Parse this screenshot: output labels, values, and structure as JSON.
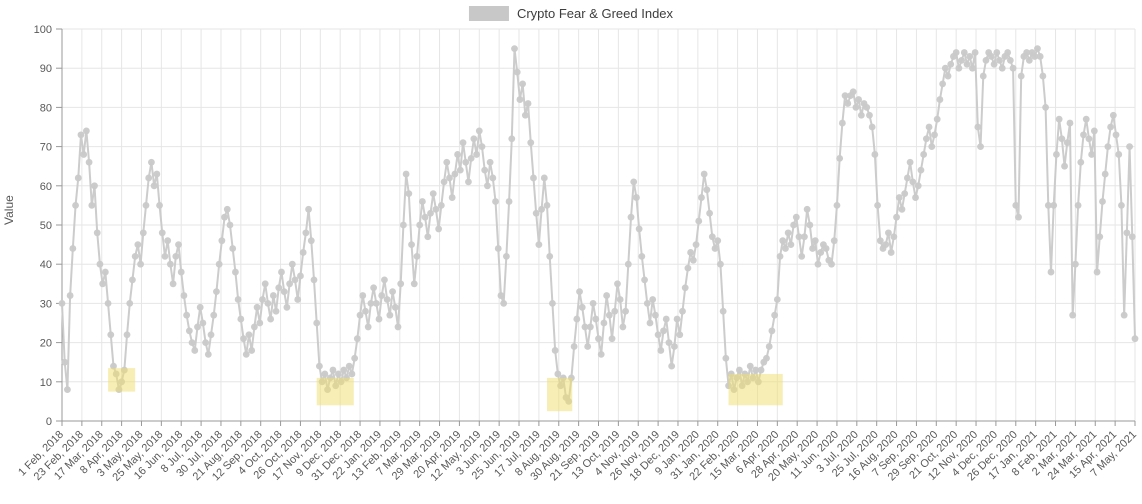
{
  "legend": {
    "label": "Crypto Fear & Greed Index",
    "swatch_color": "#c8c8c8",
    "text_color": "#3d3d3d"
  },
  "chart_data": {
    "type": "line",
    "title": "Crypto Fear & Greed Index",
    "ylabel": "Value",
    "ylim": [
      0,
      100
    ],
    "y_ticks": [
      0,
      10,
      20,
      30,
      40,
      50,
      60,
      70,
      80,
      90,
      100
    ],
    "grid": true,
    "legend_position": "top-center",
    "axis_color": "#999999",
    "grid_color": "#e6e6e6",
    "tick_label_color": "#595959",
    "highlight_color": "#f0dd6e",
    "days_per_tick": 22,
    "x_tick_labels": [
      "1 Feb, 2018",
      "23 Feb, 2018",
      "17 Mar, 2018",
      "8 Apr, 2018",
      "3 May, 2018",
      "25 May, 2018",
      "16 Jun, 2018",
      "8 Jul, 2018",
      "30 Jul, 2018",
      "21 Aug, 2018",
      "12 Sep, 2018",
      "4 Oct, 2018",
      "26 Oct, 2018",
      "17 Nov, 2018",
      "9 Dec, 2018",
      "31 Dec, 2018",
      "22 Jan, 2019",
      "13 Feb, 2019",
      "7 Mar, 2019",
      "29 Mar, 2019",
      "20 Apr, 2019",
      "12 May, 2019",
      "3 Jun, 2019",
      "25 Jun, 2019",
      "17 Jul, 2019",
      "8 Aug, 2019",
      "30 Aug, 2019",
      "21 Sep, 2019",
      "13 Oct, 2019",
      "4 Nov, 2019",
      "26 Nov, 2019",
      "18 Dec, 2019",
      "9 Jan, 2020",
      "31 Jan, 2020",
      "22 Feb, 2020",
      "15 Mar, 2020",
      "6 Apr, 2020",
      "28 Apr, 2020",
      "20 May, 2020",
      "11 Jun, 2020",
      "3 Jul, 2020",
      "25 Jul, 2020",
      "16 Aug, 2020",
      "7 Sep, 2020",
      "29 Sep, 2020",
      "21 Oct, 2020",
      "12 Nov, 2020",
      "4 Dec, 2020",
      "26 Dec, 2020",
      "17 Jan, 2021",
      "8 Feb, 2021",
      "2 Mar, 2021",
      "24 Mar, 2021",
      "15 Apr, 2021",
      "7 May, 2021"
    ],
    "highlight_regions": [
      {
        "label": "extreme-fear-apr-2018",
        "day_start": 51,
        "day_end": 81,
        "value_min": 7.5,
        "value_max": 13.5
      },
      {
        "label": "extreme-fear-nov-dec-2018",
        "day_start": 282,
        "day_end": 323,
        "value_min": 4,
        "value_max": 11
      },
      {
        "label": "extreme-fear-aug-2019",
        "day_start": 537,
        "day_end": 565,
        "value_min": 2.5,
        "value_max": 11
      },
      {
        "label": "extreme-fear-mar-apr-2020",
        "day_start": 738,
        "day_end": 798,
        "value_min": 4,
        "value_max": 12
      }
    ],
    "series": [
      {
        "name": "Crypto Fear & Greed Index",
        "color": "#c9c9c9",
        "marker": "circle",
        "start_day": 0,
        "sample_interval_days": 3,
        "values": [
          30,
          15,
          8,
          32,
          44,
          55,
          62,
          73,
          68,
          74,
          66,
          55,
          60,
          48,
          40,
          35,
          38,
          30,
          22,
          14,
          12,
          8,
          10,
          13,
          22,
          30,
          36,
          42,
          45,
          40,
          48,
          55,
          62,
          66,
          60,
          63,
          55,
          48,
          42,
          46,
          40,
          35,
          42,
          45,
          38,
          32,
          27,
          23,
          20,
          18,
          24,
          29,
          25,
          20,
          17,
          22,
          27,
          33,
          40,
          46,
          52,
          54,
          50,
          44,
          38,
          31,
          26,
          21,
          17,
          22,
          18,
          24,
          29,
          25,
          31,
          35,
          30,
          26,
          32,
          28,
          34,
          38,
          33,
          29,
          35,
          40,
          36,
          31,
          37,
          43,
          48,
          54,
          46,
          36,
          25,
          14,
          10,
          12,
          8,
          11,
          13,
          9,
          12,
          10,
          13,
          11,
          14,
          12,
          16,
          21,
          27,
          32,
          28,
          24,
          30,
          34,
          30,
          26,
          32,
          36,
          31,
          27,
          33,
          29,
          24,
          35,
          50,
          63,
          58,
          45,
          35,
          42,
          50,
          56,
          52,
          47,
          53,
          58,
          54,
          49,
          55,
          61,
          66,
          62,
          57,
          63,
          68,
          64,
          71,
          66,
          61,
          67,
          72,
          68,
          74,
          70,
          64,
          60,
          66,
          62,
          56,
          44,
          32,
          30,
          42,
          56,
          72,
          95,
          89,
          82,
          86,
          78,
          81,
          71,
          62,
          53,
          45,
          54,
          62,
          55,
          42,
          30,
          18,
          12,
          9,
          11,
          6,
          5,
          11,
          19,
          26,
          33,
          29,
          24,
          19,
          24,
          30,
          26,
          21,
          17,
          25,
          32,
          27,
          21,
          28,
          35,
          31,
          24,
          28,
          40,
          52,
          61,
          57,
          49,
          42,
          36,
          30,
          25,
          31,
          27,
          22,
          18,
          23,
          26,
          20,
          14,
          19,
          26,
          22,
          28,
          34,
          39,
          43,
          41,
          45,
          51,
          57,
          63,
          59,
          53,
          47,
          44,
          46,
          40,
          28,
          16,
          9,
          12,
          8,
          11,
          13,
          9,
          12,
          10,
          14,
          11,
          13,
          10,
          13,
          15,
          16,
          19,
          23,
          27,
          31,
          42,
          46,
          44,
          48,
          45,
          50,
          52,
          47,
          42,
          47,
          54,
          50,
          44,
          46,
          40,
          43,
          45,
          44,
          41,
          40,
          46,
          55,
          67,
          76,
          83,
          81,
          83,
          84,
          80,
          82,
          78,
          81,
          80,
          78,
          75,
          68,
          55,
          46,
          44,
          45,
          48,
          43,
          47,
          52,
          57,
          54,
          58,
          62,
          66,
          61,
          57,
          60,
          64,
          68,
          72,
          75,
          70,
          73,
          77,
          82,
          86,
          90,
          88,
          91,
          93,
          94,
          90,
          92,
          94,
          91,
          93,
          90,
          94,
          75,
          70,
          88,
          92,
          94,
          93,
          91,
          94,
          92,
          90,
          93,
          94,
          92,
          90,
          55,
          52,
          88,
          93,
          94,
          92,
          94,
          93,
          95,
          93,
          88,
          80,
          55,
          38,
          55,
          68,
          77,
          72,
          65,
          71,
          76,
          27,
          40,
          55,
          66,
          73,
          77,
          72,
          68,
          74,
          38,
          47,
          56,
          63,
          70,
          75,
          78,
          73,
          68,
          55,
          27,
          48,
          70,
          47,
          21
        ]
      }
    ]
  }
}
